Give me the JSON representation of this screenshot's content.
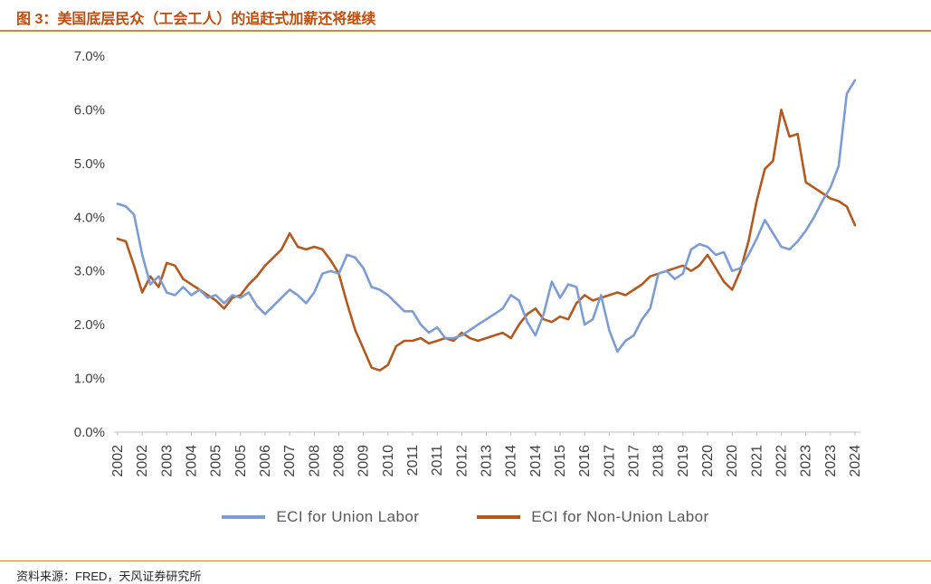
{
  "header": {
    "title": "图 3：美国底层民众（工会工人）的追赶式加薪还将继续"
  },
  "footer": {
    "source": "资料来源：FRED，天风证券研究所"
  },
  "colors": {
    "title": "#BF4D0D",
    "rule": "#D9822B",
    "axis_line": "#BFBFBF",
    "axis_text": "#404040",
    "legend_text": "#595959",
    "union_line": "#7C9CD4",
    "non_union_line": "#B4591E"
  },
  "chart_data": {
    "type": "line",
    "title": "图 3：美国底层民众（工会工人）的追赶式加薪还将继续",
    "xlabel": "",
    "ylabel": "",
    "x_unit": "quarter",
    "x_range": "2002Q1-2024Q3",
    "ylim": [
      0,
      7
    ],
    "grid": false,
    "legend_position": "bottom",
    "ytick_labels": [
      "0.0%",
      "1.0%",
      "2.0%",
      "3.0%",
      "4.0%",
      "5.0%",
      "6.0%",
      "7.0%"
    ],
    "xtick_every": 3,
    "xtick_labels": [
      "2002",
      "2002",
      "2003",
      "2004",
      "2005",
      "2005",
      "2006",
      "2007",
      "2008",
      "2008",
      "2009",
      "2010",
      "2011",
      "2011",
      "2012",
      "2013",
      "2014",
      "2014",
      "2015",
      "2016",
      "2017",
      "2017",
      "2018",
      "2019",
      "2020",
      "2020",
      "2021",
      "2022",
      "2023",
      "2023",
      "2024"
    ],
    "series": [
      {
        "name": "ECI for Union Labor",
        "color": "#7C9CD4",
        "values": [
          4.25,
          4.2,
          4.05,
          3.3,
          2.75,
          2.9,
          2.6,
          2.55,
          2.7,
          2.55,
          2.65,
          2.5,
          2.55,
          2.4,
          2.55,
          2.5,
          2.6,
          2.35,
          2.2,
          2.35,
          2.5,
          2.65,
          2.55,
          2.4,
          2.6,
          2.95,
          3.0,
          2.95,
          3.3,
          3.25,
          3.05,
          2.7,
          2.65,
          2.55,
          2.4,
          2.25,
          2.25,
          2.0,
          1.85,
          1.95,
          1.75,
          1.75,
          1.8,
          1.9,
          2.0,
          2.1,
          2.2,
          2.3,
          2.55,
          2.45,
          2.05,
          1.8,
          2.2,
          2.8,
          2.5,
          2.75,
          2.7,
          2.0,
          2.1,
          2.55,
          1.9,
          1.5,
          1.7,
          1.8,
          2.1,
          2.3,
          2.95,
          3.0,
          2.85,
          2.95,
          3.4,
          3.5,
          3.45,
          3.3,
          3.35,
          3.0,
          3.05,
          3.3,
          3.6,
          3.95,
          3.7,
          3.45,
          3.4,
          3.55,
          3.75,
          4.0,
          4.3,
          4.55,
          4.95,
          6.3,
          6.55
        ]
      },
      {
        "name": "ECI for Non-Union Labor",
        "color": "#B4591E",
        "values": [
          3.6,
          3.55,
          3.1,
          2.6,
          2.9,
          2.7,
          3.15,
          3.1,
          2.85,
          2.75,
          2.65,
          2.55,
          2.45,
          2.3,
          2.5,
          2.55,
          2.75,
          2.9,
          3.1,
          3.25,
          3.4,
          3.7,
          3.45,
          3.4,
          3.45,
          3.4,
          3.2,
          2.95,
          2.4,
          1.9,
          1.55,
          1.2,
          1.15,
          1.25,
          1.6,
          1.7,
          1.7,
          1.75,
          1.65,
          1.7,
          1.75,
          1.7,
          1.85,
          1.75,
          1.7,
          1.75,
          1.8,
          1.85,
          1.75,
          2.0,
          2.2,
          2.3,
          2.1,
          2.05,
          2.15,
          2.1,
          2.4,
          2.55,
          2.45,
          2.5,
          2.55,
          2.6,
          2.55,
          2.65,
          2.75,
          2.9,
          2.95,
          3.0,
          3.05,
          3.1,
          3.0,
          3.1,
          3.3,
          3.05,
          2.8,
          2.65,
          3.0,
          3.55,
          4.3,
          4.9,
          5.05,
          6.0,
          5.5,
          5.55,
          4.65,
          4.55,
          4.45,
          4.35,
          4.3,
          4.2,
          3.85
        ]
      }
    ]
  }
}
